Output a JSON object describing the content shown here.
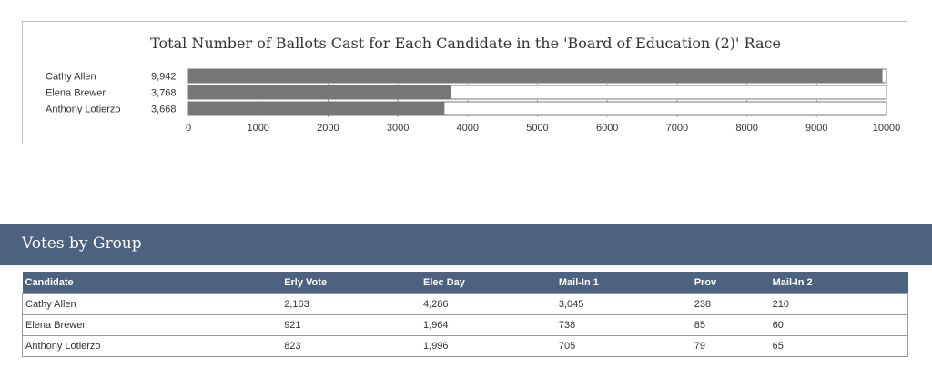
{
  "chart_data": {
    "type": "bar",
    "orientation": "horizontal",
    "title": "Total Number of Ballots Cast for Each Candidate in the 'Board of Education (2)' Race",
    "categories": [
      "Cathy Allen",
      "Elena Brewer",
      "Anthony Lotierzo"
    ],
    "values": [
      9942,
      3768,
      3668
    ],
    "value_labels": [
      "9,942",
      "3,768",
      "3,668"
    ],
    "xlim": [
      0,
      10000
    ],
    "x_ticks": [
      "0",
      "1000",
      "2000",
      "3000",
      "4000",
      "5000",
      "6000",
      "7000",
      "8000",
      "9000",
      "10000"
    ],
    "grid": true,
    "bar_color": "#777777"
  },
  "group_section": {
    "title": "Votes by Group",
    "columns": [
      "Candidate",
      "Erly Vote",
      "Elec Day",
      "Mail-In 1",
      "Prov",
      "Mail-In 2"
    ],
    "rows": [
      [
        "Cathy Allen",
        "2,163",
        "4,286",
        "3,045",
        "238",
        "210"
      ],
      [
        "Elena Brewer",
        "921",
        "1,964",
        "738",
        "85",
        "60"
      ],
      [
        "Anthony Lotierzo",
        "823",
        "1,996",
        "705",
        "79",
        "65"
      ]
    ]
  },
  "colors": {
    "header_band": "#4d6180",
    "bar": "#777777"
  }
}
